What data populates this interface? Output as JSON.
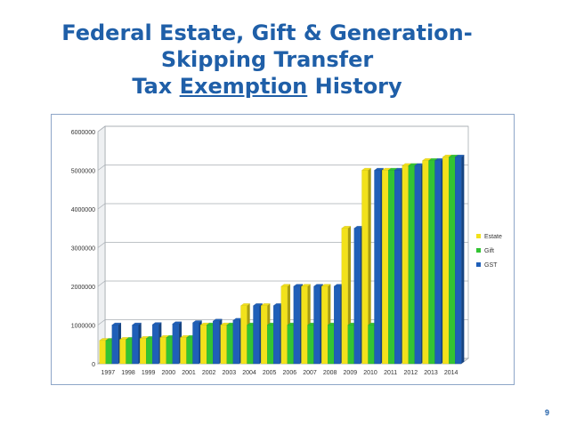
{
  "slide": {
    "title_line1": "Federal Estate, Gift & Generation-",
    "title_line2": "Skipping Transfer",
    "title_line3_prefix": "Tax ",
    "title_line3_underlined": "Exemption",
    "title_line3_suffix": " History",
    "page_number": "9"
  },
  "chart_data": {
    "type": "bar",
    "title": "",
    "xlabel": "",
    "ylabel": "",
    "ylim": [
      0,
      6000000
    ],
    "yticks": [
      0,
      1000000,
      2000000,
      3000000,
      4000000,
      5000000,
      6000000
    ],
    "grid": true,
    "legend_position": "right",
    "categories": [
      "1997",
      "1998",
      "1999",
      "2000",
      "2001",
      "2002",
      "2003",
      "2004",
      "2005",
      "2006",
      "2007",
      "2008",
      "2009",
      "2010",
      "2011",
      "2012",
      "2013",
      "2014"
    ],
    "series": [
      {
        "name": "Estate",
        "color": "#f2e11b",
        "values": [
          600000,
          625000,
          650000,
          675000,
          675000,
          1000000,
          1000000,
          1500000,
          1500000,
          2000000,
          2000000,
          2000000,
          3500000,
          5000000,
          5000000,
          5120000,
          5250000,
          5340000
        ]
      },
      {
        "name": "Gift",
        "color": "#33c433",
        "values": [
          600000,
          625000,
          650000,
          675000,
          675000,
          1000000,
          1000000,
          1000000,
          1000000,
          1000000,
          1000000,
          1000000,
          1000000,
          1000000,
          5000000,
          5120000,
          5250000,
          5340000
        ]
      },
      {
        "name": "GST",
        "color": "#1f5fb8",
        "values": [
          1000000,
          1000000,
          1010000,
          1030000,
          1060000,
          1100000,
          1120000,
          1500000,
          1500000,
          2000000,
          2000000,
          2000000,
          3500000,
          5000000,
          5000000,
          5120000,
          5250000,
          5340000
        ]
      }
    ]
  }
}
